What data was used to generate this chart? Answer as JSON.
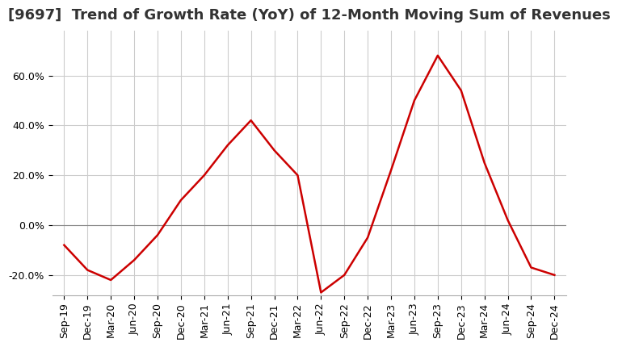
{
  "title": "[9697]  Trend of Growth Rate (YoY) of 12-Month Moving Sum of Revenues",
  "line_color": "#cc0000",
  "background_color": "#ffffff",
  "grid_color": "#cccccc",
  "ylim": [
    -0.28,
    0.78
  ],
  "yticks": [
    -0.2,
    0.0,
    0.2,
    0.4,
    0.6
  ],
  "ytick_labels": [
    "-20.0%",
    "0.0%",
    "20.0%",
    "40.0%",
    "60.0%"
  ],
  "x_labels": [
    "Sep-19",
    "Dec-19",
    "Mar-20",
    "Jun-20",
    "Sep-20",
    "Dec-20",
    "Mar-21",
    "Jun-21",
    "Sep-21",
    "Dec-21",
    "Mar-22",
    "Jun-22",
    "Sep-22",
    "Dec-22",
    "Mar-23",
    "Jun-23",
    "Sep-23",
    "Dec-23",
    "Mar-24",
    "Jun-24",
    "Sep-24",
    "Dec-24"
  ],
  "data": [
    [
      "Sep-19",
      -0.08
    ],
    [
      "Dec-19",
      -0.18
    ],
    [
      "Mar-20",
      -0.22
    ],
    [
      "Jun-20",
      -0.14
    ],
    [
      "Sep-20",
      -0.04
    ],
    [
      "Dec-20",
      0.1
    ],
    [
      "Mar-21",
      0.2
    ],
    [
      "Jun-21",
      0.32
    ],
    [
      "Sep-21",
      0.42
    ],
    [
      "Dec-21",
      0.3
    ],
    [
      "Mar-22",
      0.2
    ],
    [
      "Jun-22",
      -0.27
    ],
    [
      "Sep-22",
      -0.2
    ],
    [
      "Dec-22",
      -0.05
    ],
    [
      "Mar-23",
      0.22
    ],
    [
      "Jun-23",
      0.5
    ],
    [
      "Sep-23",
      0.68
    ],
    [
      "Dec-23",
      0.54
    ],
    [
      "Mar-24",
      0.25
    ],
    [
      "Jun-24",
      0.02
    ],
    [
      "Sep-24",
      -0.17
    ],
    [
      "Dec-24",
      -0.2
    ]
  ],
  "title_fontsize": 13,
  "tick_fontsize": 9,
  "line_width": 1.8
}
